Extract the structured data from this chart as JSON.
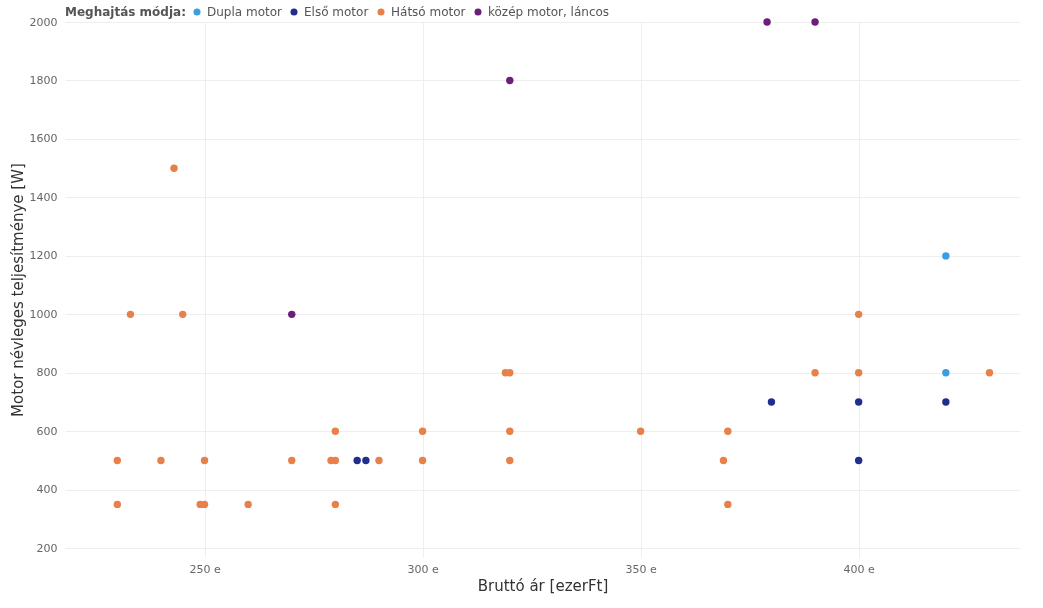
{
  "chart_data": {
    "type": "scatter",
    "xlabel": "Bruttó ár [ezerFt]",
    "ylabel": "Motor névleges teljesítménye [W]",
    "legend_title": "Meghajtás módja:",
    "legend": "top left",
    "grid": true,
    "marker": "circle",
    "xlim": [
      218,
      437
    ],
    "ylim": [
      170,
      2000
    ],
    "xticks": [
      {
        "value": 250,
        "label": "250 e"
      },
      {
        "value": 300,
        "label": "300 e"
      },
      {
        "value": 350,
        "label": "350 e"
      },
      {
        "value": 400,
        "label": "400 e"
      }
    ],
    "yticks": [
      200,
      400,
      600,
      800,
      1000,
      1200,
      1400,
      1600,
      1800,
      2000
    ],
    "series": [
      {
        "name": "Dupla motor",
        "color": "#3a9ee0",
        "x": [
          420,
          420
        ],
        "values": [
          1200,
          800
        ]
      },
      {
        "name": "Első motor",
        "color": "#1f2e8f",
        "x": [
          285,
          287,
          380,
          400,
          400,
          420
        ],
        "values": [
          500,
          500,
          700,
          700,
          500,
          700
        ]
      },
      {
        "name": "Hátsó motor",
        "color": "#e8804a",
        "x": [
          230,
          230,
          233,
          240,
          243,
          245,
          249,
          250,
          250,
          260,
          270,
          280,
          279,
          280,
          280,
          290,
          300,
          300,
          319,
          320,
          320,
          320,
          350,
          370,
          369,
          370,
          390,
          400,
          400,
          430
        ],
        "values": [
          350,
          500,
          1000,
          500,
          1500,
          1000,
          350,
          350,
          500,
          350,
          500,
          600,
          500,
          500,
          350,
          500,
          600,
          500,
          800,
          800,
          600,
          500,
          600,
          600,
          500,
          350,
          800,
          1000,
          800,
          800
        ]
      },
      {
        "name": "közép motor, láncos",
        "color": "#6b1f7a",
        "x": [
          270,
          320,
          379,
          390
        ],
        "values": [
          1000,
          1800,
          2000,
          2000
        ]
      }
    ]
  }
}
